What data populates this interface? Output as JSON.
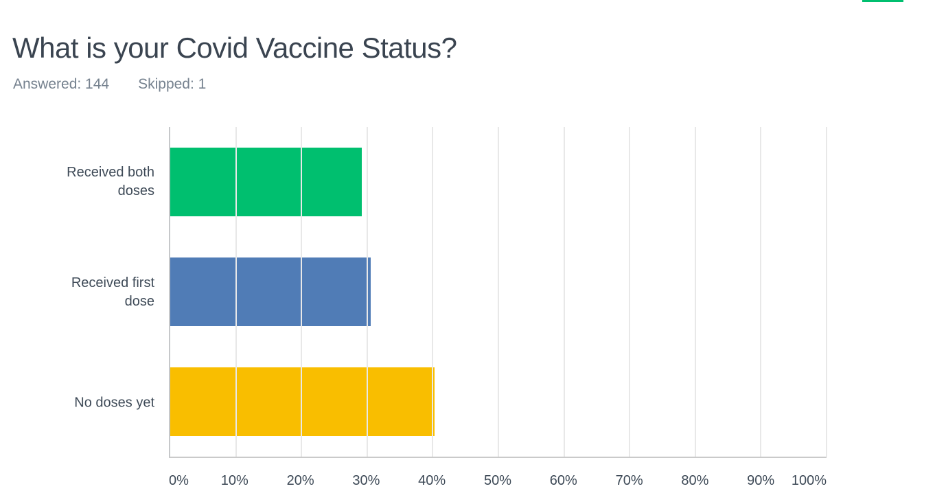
{
  "page": {
    "accent_color": "#00BF6F"
  },
  "header": {
    "title": "What is your Covid Vaccine Status?",
    "answered_label": "Answered: 144",
    "skipped_label": "Skipped: 1"
  },
  "chart_data": {
    "type": "bar",
    "orientation": "horizontal",
    "title": "What is your Covid Vaccine Status?",
    "answered": 144,
    "skipped": 1,
    "categories": [
      "Received both doses",
      "Received first dose",
      "No doses yet"
    ],
    "values": [
      29.17,
      30.56,
      40.28
    ],
    "unit": "%",
    "bar_colors": [
      "#00BF6F",
      "#507CB6",
      "#F9BE00"
    ],
    "x_ticks": [
      "0%",
      "10%",
      "20%",
      "30%",
      "40%",
      "50%",
      "60%",
      "70%",
      "80%",
      "90%",
      "100%"
    ],
    "xlim": [
      0,
      100
    ],
    "grid": "vertical",
    "legend": "none",
    "colors": {
      "axis_line": "#c6c8ca",
      "gridline": "#e8e8e8",
      "tick_text": "#3e4a57",
      "category_text": "#3e4a57"
    }
  }
}
